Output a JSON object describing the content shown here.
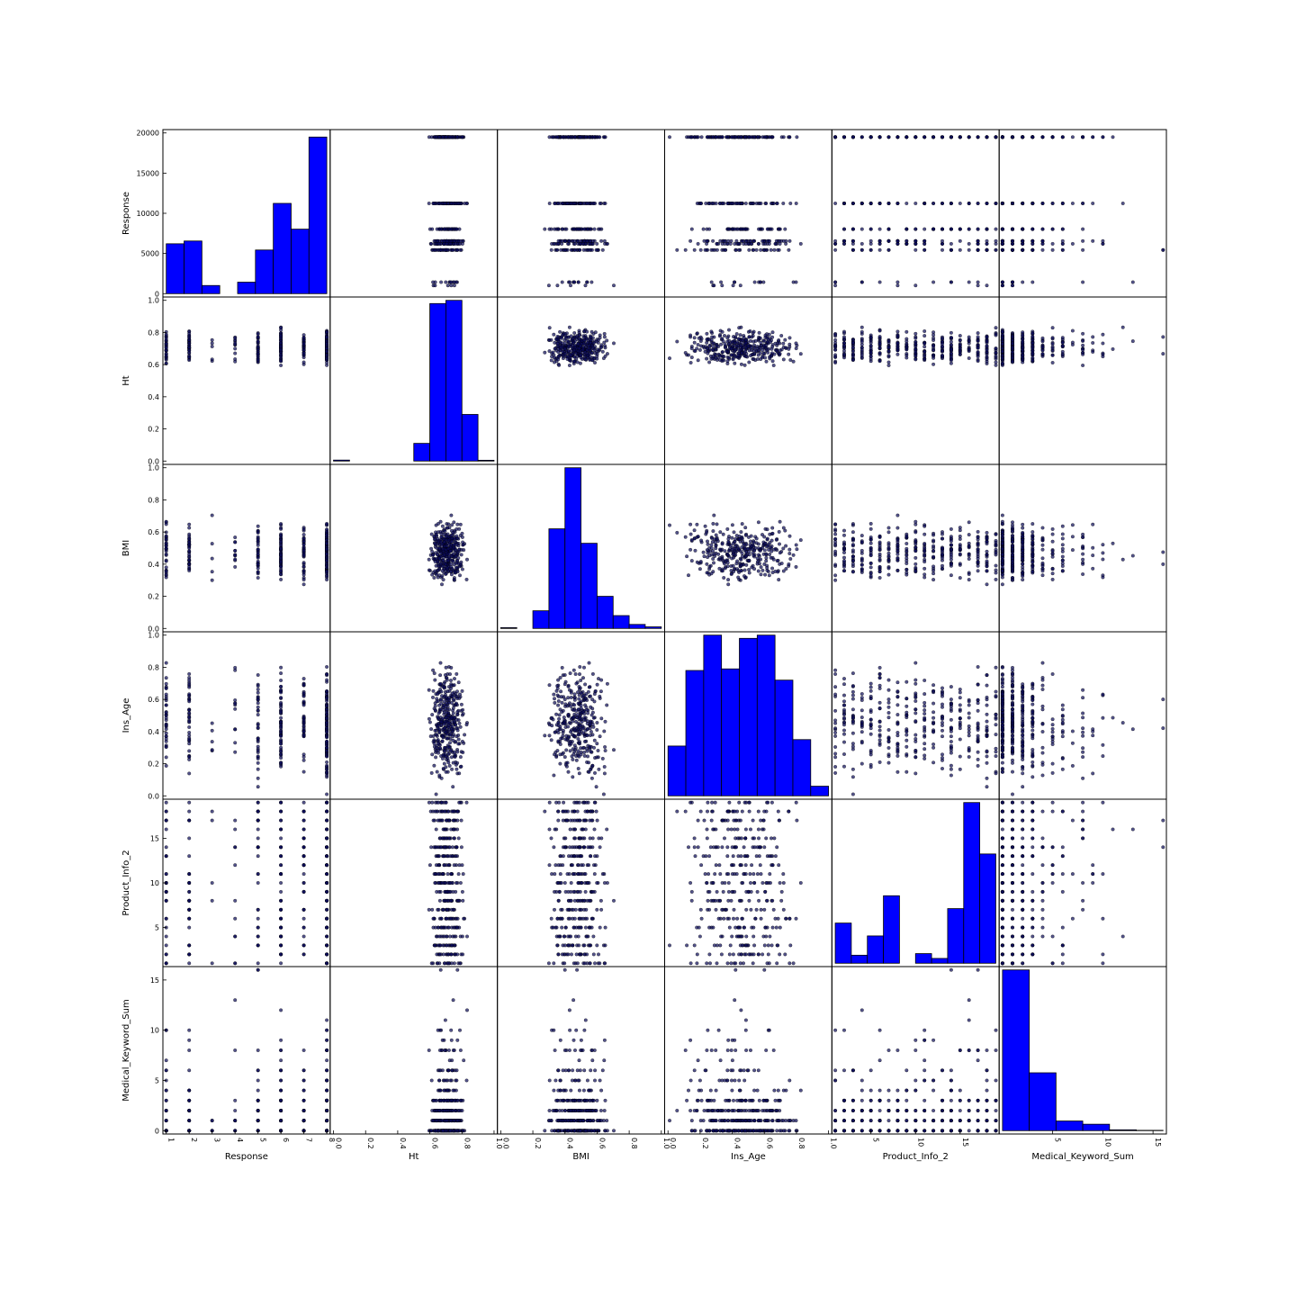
{
  "chart_data": {
    "type": "scatter-matrix",
    "colors": {
      "hist_fill": "#0000ff",
      "edge": "#000000",
      "point": "#0a0a5a"
    },
    "variables": [
      {
        "name": "Response",
        "range": [
          1,
          8
        ],
        "ticks": [
          1,
          2,
          3,
          4,
          5,
          6,
          7,
          8
        ],
        "x_tick_labels": [
          "1",
          "2",
          "3",
          "4",
          "5",
          "6",
          "7",
          "8"
        ],
        "y_tick_values": [
          0,
          5000,
          10000,
          15000,
          20000
        ],
        "y_tick_labels": [
          "0",
          "5000",
          "10000",
          "15000",
          "20000"
        ],
        "y_range": [
          0,
          20000
        ],
        "levels": [
          1,
          2,
          3,
          4,
          5,
          6,
          7,
          8
        ],
        "counts": [
          6207,
          6552,
          1013,
          1428,
          5432,
          11233,
          8027,
          19489
        ]
      },
      {
        "name": "Ht",
        "range": [
          0,
          1
        ],
        "ticks": [
          0.0,
          0.2,
          0.4,
          0.6,
          0.8,
          1.0
        ],
        "x_tick_labels": [
          "0.0",
          "0.2",
          "0.4",
          "0.6",
          "0.8",
          "1.0"
        ],
        "y_tick_labels": [
          "0.0",
          "0.2",
          "0.4",
          "0.6",
          "0.8",
          "1.0"
        ],
        "hist": [
          0.006,
          0,
          0,
          0,
          0,
          0.11,
          0.98,
          1.0,
          0.29,
          0.005
        ],
        "center": 0.71,
        "spread": 0.07
      },
      {
        "name": "BMI",
        "range": [
          0,
          1
        ],
        "ticks": [
          0.0,
          0.2,
          0.4,
          0.6,
          0.8,
          1.0
        ],
        "x_tick_labels": [
          "0.0",
          "0.2",
          "0.4",
          "0.6",
          "0.8",
          "1.0"
        ],
        "y_tick_labels": [
          "0.0",
          "0.2",
          "0.4",
          "0.6",
          "0.8",
          "1.0"
        ],
        "hist": [
          0.005,
          0,
          0.11,
          0.62,
          1.0,
          0.53,
          0.2,
          0.08,
          0.025,
          0.01
        ],
        "center": 0.47,
        "spread": 0.12
      },
      {
        "name": "Ins_Age",
        "range": [
          0,
          1
        ],
        "ticks": [
          0.0,
          0.2,
          0.4,
          0.6,
          0.8,
          1.0
        ],
        "x_tick_labels": [
          "0.0",
          "0.2",
          "0.4",
          "0.6",
          "0.8",
          "1.0"
        ],
        "y_tick_labels": [
          "0.0",
          "0.2",
          "0.4",
          "0.6",
          "0.8",
          "1.0"
        ],
        "hist": [
          0.31,
          0.78,
          1.0,
          0.79,
          0.98,
          1.0,
          0.72,
          0.35,
          0.06
        ],
        "center": 0.45,
        "spread": 0.22
      },
      {
        "name": "Product_Info_2",
        "range": [
          1,
          19
        ],
        "ticks": [
          5,
          10,
          15
        ],
        "x_tick_labels": [
          "5",
          "10",
          "15"
        ],
        "y_tick_values": [
          5,
          10,
          15
        ],
        "y_tick_labels": [
          "5",
          "10",
          "15"
        ],
        "hist": [
          0.25,
          0.05,
          0.17,
          0.42,
          0.0,
          0.06,
          0.03,
          0.34,
          1.0,
          0.68
        ],
        "levels": [
          1,
          2,
          3,
          4,
          5,
          6,
          7,
          8,
          9,
          10,
          11,
          12,
          13,
          14,
          15,
          16,
          17,
          18,
          19
        ]
      },
      {
        "name": "Medical_Keyword_Sum",
        "range": [
          0,
          16
        ],
        "ticks": [
          0,
          5,
          10,
          15
        ],
        "x_tick_labels": [
          "",
          "5",
          "10",
          "15"
        ],
        "y_tick_values": [
          0,
          5,
          10,
          15
        ],
        "y_tick_labels": [
          "0",
          "5",
          "10",
          "15"
        ],
        "hist": [
          1.0,
          0.36,
          0.06,
          0.04,
          0.005,
          0.002
        ],
        "levels": [
          0,
          1,
          2,
          3,
          4,
          5,
          6,
          7,
          8,
          9,
          10,
          11,
          12,
          13,
          14,
          15,
          16
        ]
      }
    ]
  }
}
